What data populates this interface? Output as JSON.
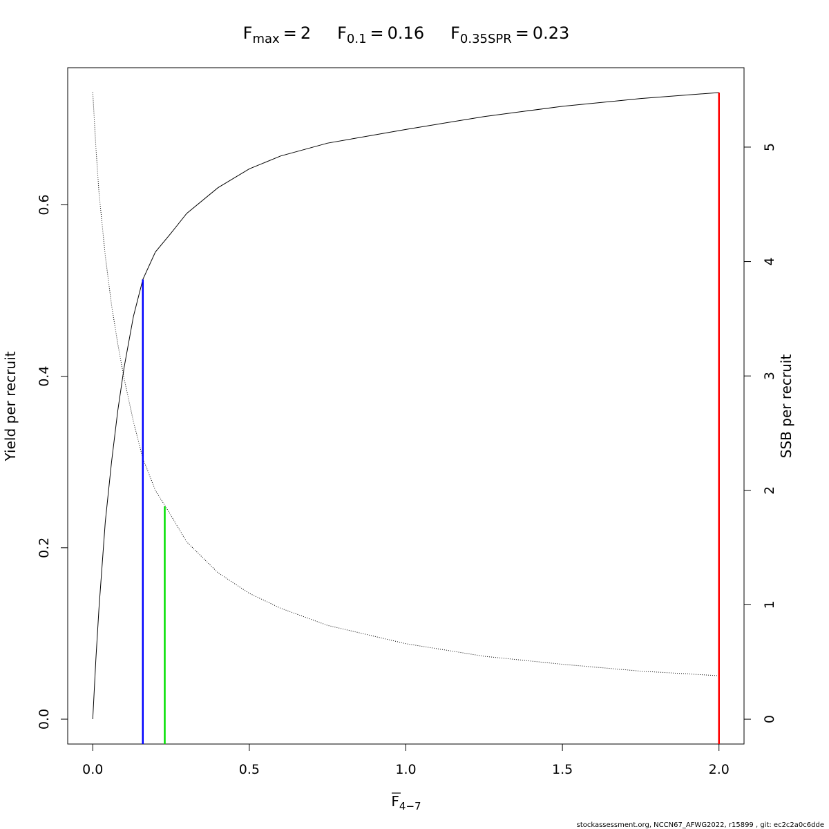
{
  "chart_data": {
    "type": "line",
    "references": [
      {
        "name": "F",
        "subscript": "max",
        "operator": "=",
        "value": 2,
        "color": "#ff0000",
        "y_end": 0.731,
        "axis": "y"
      },
      {
        "name": "F",
        "subscript": "0.1",
        "operator": "=",
        "value": 0.16,
        "color": "#0000ff",
        "y_end": 0.513,
        "axis": "y"
      },
      {
        "name": "F",
        "subscript": "0.35SPR",
        "operator": "=",
        "value": 0.23,
        "color": "#00e000",
        "y_end": 1.86,
        "axis": "y2"
      }
    ],
    "xlabel": {
      "text": "F",
      "subscript": "4−7"
    },
    "ylabel": "Yield per recruit",
    "y2label": "SSB per recruit",
    "x": [
      0,
      0.01,
      0.02,
      0.04,
      0.06,
      0.08,
      0.1,
      0.13,
      0.16,
      0.2,
      0.25,
      0.3,
      0.4,
      0.5,
      0.6,
      0.75,
      1,
      1.25,
      1.5,
      1.75,
      2
    ],
    "series": [
      {
        "color": "#000000",
        "linestyle": "solid",
        "axis": "y",
        "values": [
          0,
          0.07,
          0.13,
          0.23,
          0.3,
          0.36,
          0.41,
          0.47,
          0.513,
          0.545,
          0.567,
          0.59,
          0.62,
          0.642,
          0.657,
          0.672,
          0.688,
          0.703,
          0.715,
          0.724,
          0.731
        ]
      },
      {
        "color": "#000000",
        "linestyle": "dotted",
        "axis": "y2",
        "values": [
          5.48,
          5.0,
          4.6,
          4.05,
          3.62,
          3.28,
          2.98,
          2.6,
          2.28,
          2.0,
          1.78,
          1.55,
          1.28,
          1.1,
          0.97,
          0.82,
          0.66,
          0.55,
          0.48,
          0.42,
          0.38
        ]
      }
    ],
    "xlim": [
      -0.08,
      2.08
    ],
    "xticks": [
      {
        "value": 0,
        "label": "0.0"
      },
      0.5,
      {
        "value": 1,
        "label": "1.0"
      },
      1.5,
      {
        "value": 2,
        "label": "2.0"
      }
    ],
    "ylim": [
      -0.029,
      0.76
    ],
    "yticks": [
      {
        "value": 0,
        "label": "0.0"
      },
      0.2,
      0.4,
      0.6
    ],
    "y2lim": [
      -0.217,
      5.694
    ],
    "y2ticks": [
      0,
      1,
      2,
      3,
      4,
      5
    ],
    "footer": "stockassessment.org, NCCN67_AFWG2022, r15899 , git: ec2c2a0c6dde"
  }
}
